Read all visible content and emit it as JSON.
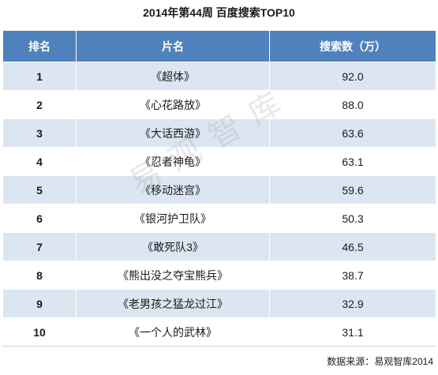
{
  "title": "2014年第44周 百度搜索TOP10",
  "headers": {
    "rank": "排名",
    "title": "片名",
    "value": "搜索数（万）"
  },
  "rows": [
    {
      "rank": "1",
      "title": "《超体》",
      "value": "92.0"
    },
    {
      "rank": "2",
      "title": "《心花路放》",
      "value": "88.0"
    },
    {
      "rank": "3",
      "title": "《大话西游》",
      "value": "63.6"
    },
    {
      "rank": "4",
      "title": "《忍者神龟》",
      "value": "63.1"
    },
    {
      "rank": "5",
      "title": "《移动迷宫》",
      "value": "59.6"
    },
    {
      "rank": "6",
      "title": "《银河护卫队》",
      "value": "50.3"
    },
    {
      "rank": "7",
      "title": "《敢死队3》",
      "value": "46.5"
    },
    {
      "rank": "8",
      "title": "《熊出没之夺宝熊兵》",
      "value": "38.7"
    },
    {
      "rank": "9",
      "title": "《老男孩之猛龙过江》",
      "value": "32.9"
    },
    {
      "rank": "10",
      "title": "《一个人的武林》",
      "value": "31.1"
    }
  ],
  "watermark": "易观智库",
  "source": "数据来源：易观智库2014",
  "colors": {
    "header_bg": "#4f81bd",
    "stripe_bg": "#dce6f2"
  }
}
